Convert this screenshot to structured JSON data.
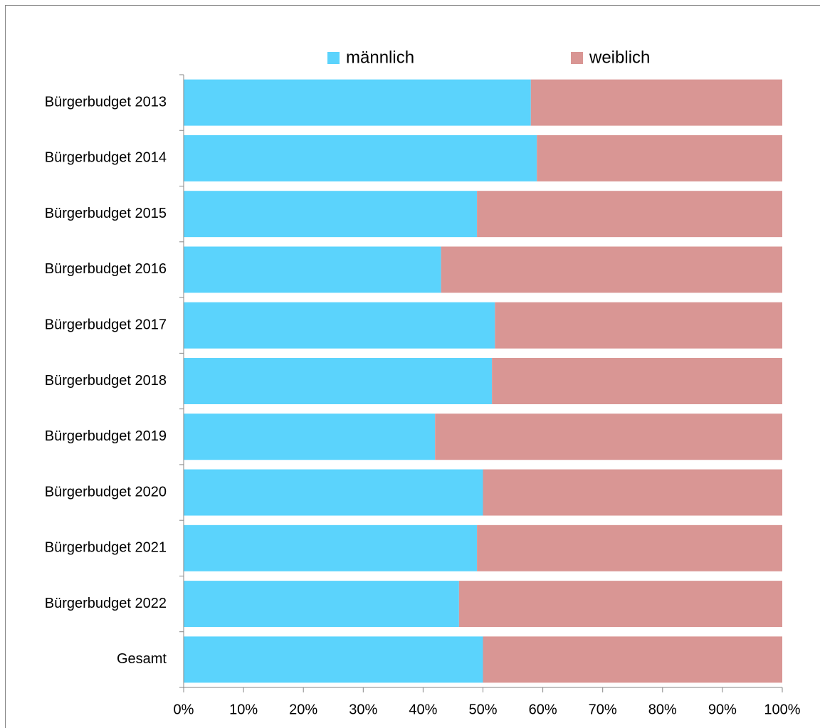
{
  "chart_data": {
    "type": "stacked_bar_horizontal",
    "categories": [
      "Bürgerbudget 2013",
      "Bürgerbudget 2014",
      "Bürgerbudget 2015",
      "Bürgerbudget 2016",
      "Bürgerbudget 2017",
      "Bürgerbudget 2018",
      "Bürgerbudget 2019",
      "Bürgerbudget 2020",
      "Bürgerbudget 2021",
      "Bürgerbudget 2022",
      "Gesamt"
    ],
    "series": [
      {
        "name": "männlich",
        "color": "#5bd3fc",
        "values": [
          58,
          59,
          49,
          43,
          52,
          51.5,
          42,
          50,
          49,
          46,
          50
        ]
      },
      {
        "name": "weiblich",
        "color": "#d99694",
        "values": [
          42,
          41,
          51,
          57,
          48,
          48.5,
          58,
          50,
          51,
          54,
          50
        ]
      }
    ],
    "xlim": [
      0,
      100
    ],
    "xticks": [
      {
        "value": 0,
        "label": "0%"
      },
      {
        "value": 10,
        "label": "10%"
      },
      {
        "value": 20,
        "label": "20%"
      },
      {
        "value": 30,
        "label": "30%"
      },
      {
        "value": 40,
        "label": "40%"
      },
      {
        "value": 50,
        "label": "50%"
      },
      {
        "value": 60,
        "label": "60%"
      },
      {
        "value": 70,
        "label": "70%"
      },
      {
        "value": 80,
        "label": "80%"
      },
      {
        "value": 90,
        "label": "90%"
      },
      {
        "value": 100,
        "label": "100%"
      }
    ],
    "legend": "top"
  }
}
